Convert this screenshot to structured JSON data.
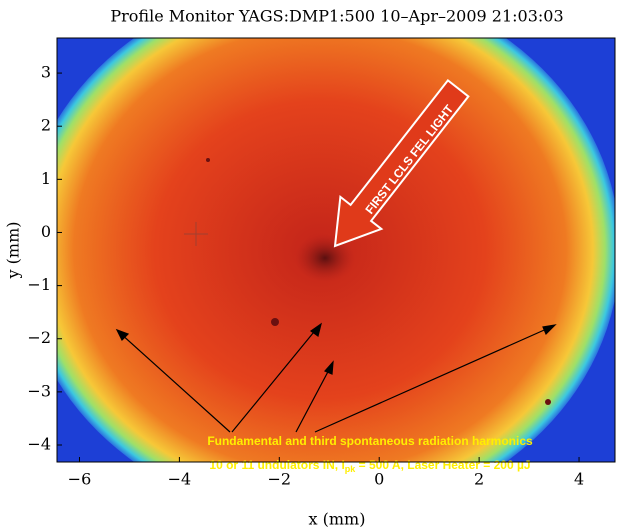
{
  "chart_data": {
    "type": "image",
    "title": "Profile Monitor YAGS:DMP1:500 10–Apr–2009 21:03:03",
    "x_label": "x (mm)",
    "y_label": "y (mm)",
    "xlim": [
      -6.45,
      4.72
    ],
    "ylim": [
      -4.32,
      3.66
    ],
    "xticks": [
      {
        "value": -6,
        "label": "−6"
      },
      {
        "value": -4,
        "label": "−4"
      },
      {
        "value": -2,
        "label": "−2"
      },
      0,
      2,
      4
    ],
    "yticks": [
      {
        "value": -4,
        "label": "−4"
      },
      {
        "value": -3,
        "label": "−3"
      },
      {
        "value": -2,
        "label": "−2"
      },
      {
        "value": -1,
        "label": "−1"
      },
      0,
      1,
      2,
      3
    ],
    "annotations": {
      "arrow_text": "FIRST LCLS FEL LIGHT",
      "line1": "Fundamental and third spontaneous radiation harmonics",
      "line2_parts": [
        "10 or 11 undulators IN, I",
        "pk",
        " = 500 A, Laser Heater = 200 µJ"
      ]
    }
  }
}
